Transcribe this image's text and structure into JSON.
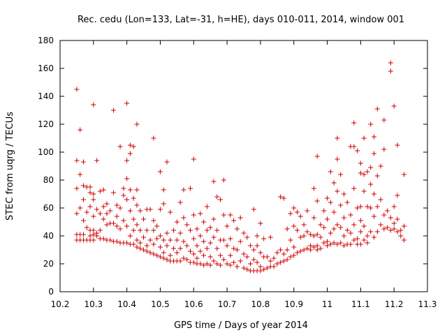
{
  "chart_data": {
    "type": "scatter",
    "title": "Rec. cedu (Lon=133, Lat=-31, h=HE), days 010-011, 2014, window 001",
    "xlabel": "GPS time / Days of year 2014",
    "ylabel": "STEC from uqrg / TECUs",
    "xlim": [
      10.2,
      11.3
    ],
    "ylim": [
      0,
      180
    ],
    "xticks": [
      "10.2",
      "10.3",
      "10.4",
      "10.5",
      "10.6",
      "10.7",
      "10.8",
      "10.9",
      "11",
      "11.1",
      "11.2",
      "11.3"
    ],
    "yticks": [
      "0",
      "20",
      "40",
      "60",
      "80",
      "100",
      "120",
      "140",
      "160",
      "180"
    ],
    "grid": false,
    "marker": "+",
    "color": "#cc0000",
    "points": [
      [
        10.25,
        145
      ],
      [
        10.25,
        94
      ],
      [
        10.25,
        74
      ],
      [
        10.25,
        56
      ],
      [
        10.25,
        41
      ],
      [
        10.25,
        37
      ],
      [
        10.26,
        116
      ],
      [
        10.26,
        84
      ],
      [
        10.26,
        60
      ],
      [
        10.26,
        41
      ],
      [
        10.26,
        37
      ],
      [
        10.27,
        93
      ],
      [
        10.27,
        76
      ],
      [
        10.27,
        66
      ],
      [
        10.27,
        51
      ],
      [
        10.27,
        41
      ],
      [
        10.27,
        37
      ],
      [
        10.28,
        75
      ],
      [
        10.28,
        57
      ],
      [
        10.28,
        46
      ],
      [
        10.28,
        37
      ],
      [
        10.29,
        75
      ],
      [
        10.29,
        71
      ],
      [
        10.29,
        61
      ],
      [
        10.29,
        44
      ],
      [
        10.29,
        40
      ],
      [
        10.29,
        37
      ],
      [
        10.3,
        134
      ],
      [
        10.3,
        70
      ],
      [
        10.3,
        66
      ],
      [
        10.3,
        54
      ],
      [
        10.3,
        44
      ],
      [
        10.3,
        41
      ],
      [
        10.3,
        37
      ],
      [
        10.31,
        94
      ],
      [
        10.31,
        59
      ],
      [
        10.31,
        42
      ],
      [
        10.31,
        40
      ],
      [
        10.32,
        72
      ],
      [
        10.32,
        56
      ],
      [
        10.32,
        44
      ],
      [
        10.32,
        38
      ],
      [
        10.33,
        73
      ],
      [
        10.33,
        61
      ],
      [
        10.33,
        52
      ],
      [
        10.33,
        38
      ],
      [
        10.34,
        63
      ],
      [
        10.34,
        56
      ],
      [
        10.34,
        48
      ],
      [
        10.34,
        37
      ],
      [
        10.35,
        58
      ],
      [
        10.35,
        49
      ],
      [
        10.35,
        37
      ],
      [
        10.36,
        130
      ],
      [
        10.36,
        71
      ],
      [
        10.36,
        49
      ],
      [
        10.36,
        36
      ],
      [
        10.37,
        62
      ],
      [
        10.37,
        54
      ],
      [
        10.37,
        47
      ],
      [
        10.37,
        36
      ],
      [
        10.38,
        104
      ],
      [
        10.38,
        60
      ],
      [
        10.38,
        45
      ],
      [
        10.38,
        35
      ],
      [
        10.39,
        74
      ],
      [
        10.39,
        69
      ],
      [
        10.39,
        51
      ],
      [
        10.39,
        35
      ],
      [
        10.4,
        135
      ],
      [
        10.4,
        94
      ],
      [
        10.4,
        81
      ],
      [
        10.4,
        66
      ],
      [
        10.4,
        47
      ],
      [
        10.4,
        35
      ],
      [
        10.41,
        105
      ],
      [
        10.41,
        99
      ],
      [
        10.41,
        73
      ],
      [
        10.41,
        58
      ],
      [
        10.41,
        40
      ],
      [
        10.41,
        34
      ],
      [
        10.42,
        104
      ],
      [
        10.42,
        67
      ],
      [
        10.42,
        52
      ],
      [
        10.42,
        44
      ],
      [
        10.42,
        34
      ],
      [
        10.43,
        120
      ],
      [
        10.43,
        73
      ],
      [
        10.43,
        62
      ],
      [
        10.43,
        48
      ],
      [
        10.43,
        37
      ],
      [
        10.43,
        32
      ],
      [
        10.44,
        58
      ],
      [
        10.44,
        44
      ],
      [
        10.44,
        35
      ],
      [
        10.44,
        31
      ],
      [
        10.45,
        52
      ],
      [
        10.45,
        39
      ],
      [
        10.45,
        30
      ],
      [
        10.46,
        59
      ],
      [
        10.46,
        44
      ],
      [
        10.46,
        33
      ],
      [
        10.46,
        29
      ],
      [
        10.47,
        59
      ],
      [
        10.47,
        37
      ],
      [
        10.47,
        28
      ],
      [
        10.48,
        110
      ],
      [
        10.48,
        51
      ],
      [
        10.48,
        44
      ],
      [
        10.48,
        34
      ],
      [
        10.48,
        27
      ],
      [
        10.49,
        47
      ],
      [
        10.49,
        38
      ],
      [
        10.49,
        26
      ],
      [
        10.5,
        86
      ],
      [
        10.5,
        59
      ],
      [
        10.5,
        40
      ],
      [
        10.5,
        32
      ],
      [
        10.5,
        25
      ],
      [
        10.51,
        73
      ],
      [
        10.51,
        63
      ],
      [
        10.51,
        37
      ],
      [
        10.51,
        28
      ],
      [
        10.51,
        24
      ],
      [
        10.52,
        93
      ],
      [
        10.52,
        42
      ],
      [
        10.52,
        33
      ],
      [
        10.52,
        23
      ],
      [
        10.53,
        57
      ],
      [
        10.53,
        37
      ],
      [
        10.53,
        26
      ],
      [
        10.53,
        22
      ],
      [
        10.54,
        44
      ],
      [
        10.54,
        31
      ],
      [
        10.54,
        22
      ],
      [
        10.55,
        50
      ],
      [
        10.55,
        37
      ],
      [
        10.55,
        28
      ],
      [
        10.55,
        22
      ],
      [
        10.56,
        64
      ],
      [
        10.56,
        42
      ],
      [
        10.56,
        31
      ],
      [
        10.56,
        22
      ],
      [
        10.57,
        73
      ],
      [
        10.57,
        53
      ],
      [
        10.57,
        36
      ],
      [
        10.57,
        24
      ],
      [
        10.58,
        48
      ],
      [
        10.58,
        33
      ],
      [
        10.58,
        23
      ],
      [
        10.59,
        74
      ],
      [
        10.59,
        44
      ],
      [
        10.59,
        29
      ],
      [
        10.59,
        21
      ],
      [
        10.6,
        95
      ],
      [
        10.6,
        55
      ],
      [
        10.6,
        38
      ],
      [
        10.6,
        27
      ],
      [
        10.6,
        21
      ],
      [
        10.61,
        45
      ],
      [
        10.61,
        33
      ],
      [
        10.61,
        24
      ],
      [
        10.61,
        20
      ],
      [
        10.62,
        56
      ],
      [
        10.62,
        40
      ],
      [
        10.62,
        29
      ],
      [
        10.62,
        20
      ],
      [
        10.63,
        50
      ],
      [
        10.63,
        36
      ],
      [
        10.63,
        26
      ],
      [
        10.63,
        19
      ],
      [
        10.64,
        61
      ],
      [
        10.64,
        44
      ],
      [
        10.64,
        31
      ],
      [
        10.64,
        20
      ],
      [
        10.65,
        46
      ],
      [
        10.65,
        35
      ],
      [
        10.65,
        25
      ],
      [
        10.65,
        19
      ],
      [
        10.66,
        79
      ],
      [
        10.66,
        52
      ],
      [
        10.66,
        39
      ],
      [
        10.66,
        22
      ],
      [
        10.67,
        68
      ],
      [
        10.67,
        44
      ],
      [
        10.67,
        31
      ],
      [
        10.67,
        20
      ],
      [
        10.68,
        66
      ],
      [
        10.68,
        37
      ],
      [
        10.68,
        26
      ],
      [
        10.68,
        19
      ],
      [
        10.69,
        80
      ],
      [
        10.69,
        55
      ],
      [
        10.69,
        37
      ],
      [
        10.69,
        23
      ],
      [
        10.7,
        47
      ],
      [
        10.7,
        33
      ],
      [
        10.7,
        20
      ],
      [
        10.71,
        55
      ],
      [
        10.71,
        38
      ],
      [
        10.71,
        26
      ],
      [
        10.71,
        19
      ],
      [
        10.72,
        51
      ],
      [
        10.72,
        31
      ],
      [
        10.72,
        21
      ],
      [
        10.73,
        45
      ],
      [
        10.73,
        30
      ],
      [
        10.73,
        18
      ],
      [
        10.74,
        53
      ],
      [
        10.74,
        36
      ],
      [
        10.74,
        22
      ],
      [
        10.75,
        42
      ],
      [
        10.75,
        27
      ],
      [
        10.75,
        17
      ],
      [
        10.76,
        39
      ],
      [
        10.76,
        25
      ],
      [
        10.76,
        16
      ],
      [
        10.77,
        33
      ],
      [
        10.77,
        20
      ],
      [
        10.77,
        15
      ],
      [
        10.78,
        59
      ],
      [
        10.78,
        30
      ],
      [
        10.78,
        23
      ],
      [
        10.78,
        15
      ],
      [
        10.79,
        40
      ],
      [
        10.79,
        33
      ],
      [
        10.79,
        21
      ],
      [
        10.79,
        15
      ],
      [
        10.8,
        49
      ],
      [
        10.8,
        28
      ],
      [
        10.8,
        18
      ],
      [
        10.8,
        15
      ],
      [
        10.81,
        38
      ],
      [
        10.81,
        25
      ],
      [
        10.81,
        16
      ],
      [
        10.82,
        25
      ],
      [
        10.82,
        17
      ],
      [
        10.83,
        39
      ],
      [
        10.83,
        22
      ],
      [
        10.83,
        18
      ],
      [
        10.84,
        24
      ],
      [
        10.84,
        18
      ],
      [
        10.85,
        28
      ],
      [
        10.85,
        20
      ],
      [
        10.86,
        68
      ],
      [
        10.86,
        30
      ],
      [
        10.86,
        21
      ],
      [
        10.87,
        67
      ],
      [
        10.87,
        27
      ],
      [
        10.87,
        22
      ],
      [
        10.88,
        45
      ],
      [
        10.88,
        30
      ],
      [
        10.88,
        23
      ],
      [
        10.89,
        56
      ],
      [
        10.89,
        37
      ],
      [
        10.89,
        25
      ],
      [
        10.9,
        60
      ],
      [
        10.9,
        47
      ],
      [
        10.9,
        32
      ],
      [
        10.9,
        26
      ],
      [
        10.91,
        57
      ],
      [
        10.91,
        44
      ],
      [
        10.91,
        28
      ],
      [
        10.92,
        54
      ],
      [
        10.92,
        39
      ],
      [
        10.92,
        29
      ],
      [
        10.93,
        48
      ],
      [
        10.93,
        40
      ],
      [
        10.93,
        30
      ],
      [
        10.94,
        58
      ],
      [
        10.94,
        43
      ],
      [
        10.94,
        31
      ],
      [
        10.95,
        41
      ],
      [
        10.95,
        33
      ],
      [
        10.95,
        30
      ],
      [
        10.96,
        74
      ],
      [
        10.96,
        53
      ],
      [
        10.96,
        40
      ],
      [
        10.96,
        32
      ],
      [
        10.97,
        97
      ],
      [
        10.97,
        65
      ],
      [
        10.97,
        41
      ],
      [
        10.97,
        33
      ],
      [
        10.97,
        30
      ],
      [
        10.98,
        48
      ],
      [
        10.98,
        39
      ],
      [
        10.98,
        31
      ],
      [
        10.99,
        58
      ],
      [
        10.99,
        46
      ],
      [
        10.99,
        35
      ],
      [
        11.0,
        67
      ],
      [
        11.0,
        52
      ],
      [
        11.0,
        36
      ],
      [
        11.0,
        33
      ],
      [
        11.01,
        86
      ],
      [
        11.01,
        64
      ],
      [
        11.01,
        42
      ],
      [
        11.01,
        34
      ],
      [
        11.02,
        78
      ],
      [
        11.02,
        57
      ],
      [
        11.02,
        45
      ],
      [
        11.02,
        35
      ],
      [
        11.03,
        110
      ],
      [
        11.03,
        95
      ],
      [
        11.03,
        72
      ],
      [
        11.03,
        48
      ],
      [
        11.03,
        34
      ],
      [
        11.04,
        84
      ],
      [
        11.04,
        62
      ],
      [
        11.04,
        46
      ],
      [
        11.04,
        35
      ],
      [
        11.05,
        70
      ],
      [
        11.05,
        53
      ],
      [
        11.05,
        40
      ],
      [
        11.05,
        33
      ],
      [
        11.06,
        64
      ],
      [
        11.06,
        44
      ],
      [
        11.06,
        34
      ],
      [
        11.07,
        104
      ],
      [
        11.07,
        55
      ],
      [
        11.07,
        42
      ],
      [
        11.07,
        34
      ],
      [
        11.08,
        121
      ],
      [
        11.08,
        104
      ],
      [
        11.08,
        74
      ],
      [
        11.08,
        48
      ],
      [
        11.08,
        37
      ],
      [
        11.09,
        101
      ],
      [
        11.09,
        60
      ],
      [
        11.09,
        38
      ],
      [
        11.09,
        34
      ],
      [
        11.1,
        92
      ],
      [
        11.1,
        85
      ],
      [
        11.1,
        61
      ],
      [
        11.1,
        51
      ],
      [
        11.1,
        43
      ],
      [
        11.1,
        34
      ],
      [
        11.11,
        110
      ],
      [
        11.11,
        84
      ],
      [
        11.11,
        72
      ],
      [
        11.11,
        47
      ],
      [
        11.11,
        37
      ],
      [
        11.12,
        86
      ],
      [
        11.12,
        61
      ],
      [
        11.12,
        40
      ],
      [
        11.12,
        35
      ],
      [
        11.13,
        120
      ],
      [
        11.13,
        89
      ],
      [
        11.13,
        77
      ],
      [
        11.13,
        60
      ],
      [
        11.13,
        43
      ],
      [
        11.14,
        111
      ],
      [
        11.14,
        99
      ],
      [
        11.14,
        70
      ],
      [
        11.14,
        54
      ],
      [
        11.14,
        39
      ],
      [
        11.15,
        131
      ],
      [
        11.15,
        83
      ],
      [
        11.15,
        61
      ],
      [
        11.15,
        43
      ],
      [
        11.16,
        90
      ],
      [
        11.16,
        66
      ],
      [
        11.16,
        48
      ],
      [
        11.17,
        123
      ],
      [
        11.17,
        102
      ],
      [
        11.17,
        55
      ],
      [
        11.17,
        45
      ],
      [
        11.18,
        58
      ],
      [
        11.18,
        46
      ],
      [
        11.19,
        164
      ],
      [
        11.19,
        158
      ],
      [
        11.19,
        53
      ],
      [
        11.19,
        44
      ],
      [
        11.2,
        133
      ],
      [
        11.2,
        61
      ],
      [
        11.2,
        49
      ],
      [
        11.2,
        45
      ],
      [
        11.21,
        105
      ],
      [
        11.21,
        69
      ],
      [
        11.21,
        52
      ],
      [
        11.21,
        43
      ],
      [
        11.22,
        44
      ],
      [
        11.22,
        40
      ],
      [
        11.23,
        84
      ],
      [
        11.23,
        47
      ],
      [
        11.23,
        37
      ]
    ]
  }
}
